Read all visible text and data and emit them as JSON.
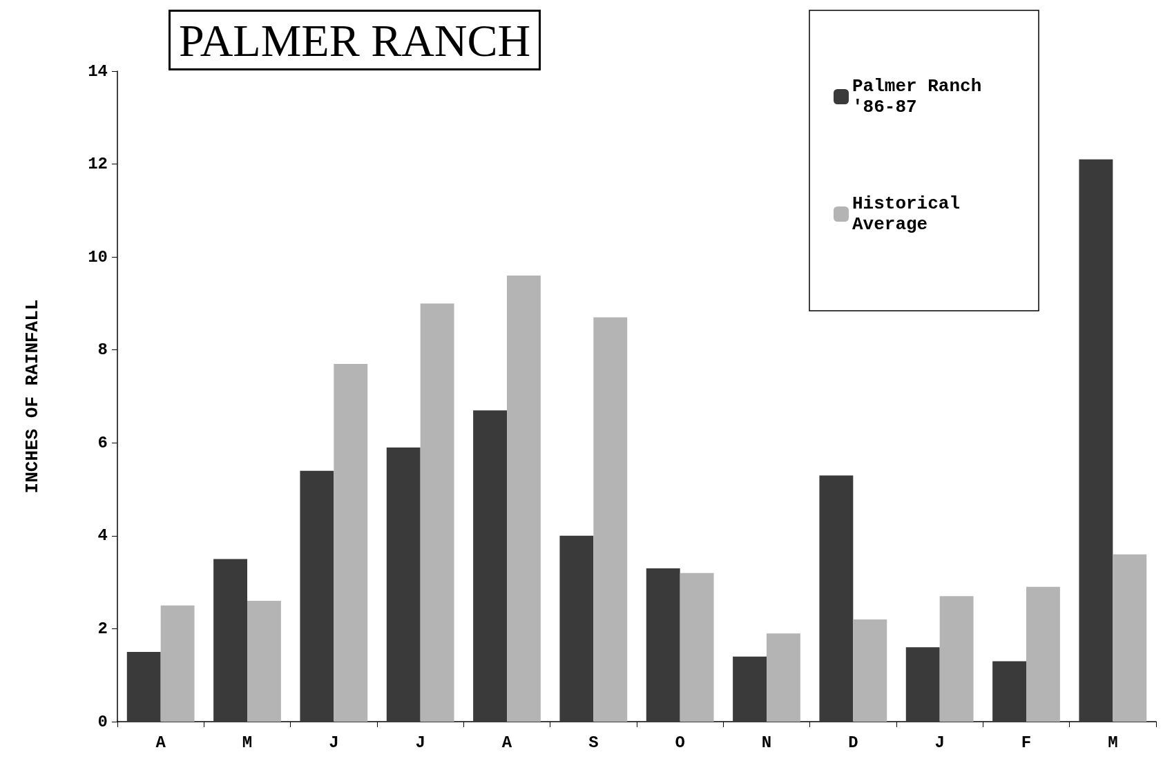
{
  "chart_data": {
    "type": "bar",
    "title": "PALMER RANCH",
    "ylabel": "INCHES OF RAINFALL",
    "categories": [
      "A",
      "M",
      "J",
      "J",
      "A",
      "S",
      "O",
      "N",
      "D",
      "J",
      "F",
      "M"
    ],
    "series": [
      {
        "name": "Palmer Ranch '86-87",
        "color": "#3a3a3a",
        "values": [
          1.5,
          3.5,
          5.4,
          5.9,
          6.7,
          4.0,
          3.3,
          1.4,
          5.3,
          1.6,
          1.3,
          12.1
        ]
      },
      {
        "name": "Historical Average",
        "color": "#b4b4b4",
        "values": [
          2.5,
          2.6,
          7.7,
          9.0,
          9.6,
          8.7,
          3.2,
          1.9,
          2.2,
          2.7,
          2.9,
          3.6
        ]
      }
    ],
    "ylim": [
      0,
      14
    ],
    "yticks": [
      0,
      2,
      4,
      6,
      8,
      10,
      12,
      14
    ],
    "grid": false,
    "legend": "top right"
  }
}
